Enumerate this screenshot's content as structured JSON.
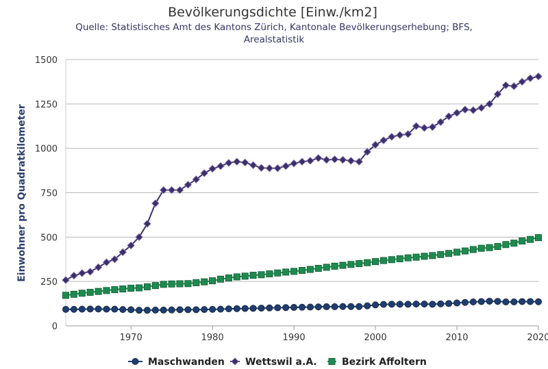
{
  "chart_data": {
    "type": "line",
    "title": "Bevölkerungsdichte [Einw./km2]",
    "subtitle_lines": [
      "Quelle: Statistisches Amt des Kantons Zürich, Kantonale Bevölkerungserhebung; BFS,",
      "Arealstatistik"
    ],
    "ylabel": "Einwohner pro Quadratkilometer",
    "xlabel": "",
    "xlim": [
      1962,
      2020
    ],
    "ylim": [
      0,
      1500
    ],
    "xticks": [
      1970,
      1980,
      1990,
      2000,
      2010,
      2020
    ],
    "yticks": [
      0,
      250,
      500,
      750,
      1000,
      1250,
      1500
    ],
    "grid": true,
    "legend_position": "bottom-center",
    "series": [
      {
        "name": "Maschwanden",
        "color": "#1f3d6e",
        "marker": "circle",
        "x": [
          1962,
          1963,
          1964,
          1965,
          1966,
          1967,
          1968,
          1969,
          1970,
          1971,
          1972,
          1973,
          1974,
          1975,
          1976,
          1977,
          1978,
          1979,
          1980,
          1981,
          1982,
          1983,
          1984,
          1985,
          1986,
          1987,
          1988,
          1989,
          1990,
          1991,
          1992,
          1993,
          1994,
          1995,
          1996,
          1997,
          1998,
          1999,
          2000,
          2001,
          2002,
          2003,
          2004,
          2005,
          2006,
          2007,
          2008,
          2009,
          2010,
          2011,
          2012,
          2013,
          2014,
          2015,
          2016,
          2017,
          2018,
          2019,
          2020
        ],
        "values": [
          93,
          93,
          94,
          95,
          95,
          94,
          94,
          92,
          91,
          88,
          88,
          89,
          89,
          90,
          91,
          91,
          91,
          92,
          93,
          94,
          96,
          97,
          98,
          99,
          100,
          101,
          102,
          103,
          104,
          105,
          106,
          107,
          108,
          108,
          109,
          109,
          109,
          113,
          118,
          121,
          122,
          122,
          122,
          123,
          123,
          122,
          124,
          126,
          129,
          132,
          135,
          137,
          139,
          138,
          135,
          135,
          137,
          137,
          136
        ]
      },
      {
        "name": "Wettswil a.A.",
        "color": "#3d2f6b",
        "marker": "diamond",
        "x": [
          1962,
          1963,
          1964,
          1965,
          1966,
          1967,
          1968,
          1969,
          1970,
          1971,
          1972,
          1973,
          1974,
          1975,
          1976,
          1977,
          1978,
          1979,
          1980,
          1981,
          1982,
          1983,
          1984,
          1985,
          1986,
          1987,
          1988,
          1989,
          1990,
          1991,
          1992,
          1993,
          1994,
          1995,
          1996,
          1997,
          1998,
          1999,
          2000,
          2001,
          2002,
          2003,
          2004,
          2005,
          2006,
          2007,
          2008,
          2009,
          2010,
          2011,
          2012,
          2013,
          2014,
          2015,
          2016,
          2017,
          2018,
          2019,
          2020
        ],
        "values": [
          258,
          283,
          297,
          305,
          330,
          358,
          375,
          415,
          453,
          500,
          575,
          690,
          765,
          765,
          765,
          795,
          825,
          860,
          885,
          900,
          918,
          925,
          920,
          905,
          890,
          888,
          888,
          900,
          915,
          925,
          930,
          945,
          935,
          938,
          935,
          930,
          925,
          980,
          1020,
          1045,
          1065,
          1075,
          1080,
          1125,
          1115,
          1120,
          1148,
          1180,
          1200,
          1218,
          1215,
          1228,
          1250,
          1305,
          1355,
          1350,
          1375,
          1395,
          1405
        ]
      },
      {
        "name": "Bezirk Affoltern",
        "color": "#1f8a50",
        "marker": "square",
        "x": [
          1962,
          1963,
          1964,
          1965,
          1966,
          1967,
          1968,
          1969,
          1970,
          1971,
          1972,
          1973,
          1974,
          1975,
          1976,
          1977,
          1978,
          1979,
          1980,
          1981,
          1982,
          1983,
          1984,
          1985,
          1986,
          1987,
          1988,
          1989,
          1990,
          1991,
          1992,
          1993,
          1994,
          1995,
          1996,
          1997,
          1998,
          1999,
          2000,
          2001,
          2002,
          2003,
          2004,
          2005,
          2006,
          2007,
          2008,
          2009,
          2010,
          2011,
          2012,
          2013,
          2014,
          2015,
          2016,
          2017,
          2018,
          2019,
          2020
        ],
        "values": [
          172,
          178,
          184,
          189,
          194,
          199,
          204,
          208,
          212,
          214,
          220,
          227,
          234,
          236,
          237,
          238,
          243,
          248,
          254,
          263,
          270,
          276,
          280,
          285,
          288,
          293,
          298,
          303,
          307,
          312,
          318,
          324,
          330,
          336,
          341,
          346,
          351,
          356,
          362,
          368,
          373,
          378,
          383,
          387,
          392,
          396,
          402,
          408,
          415,
          422,
          430,
          437,
          441,
          447,
          458,
          466,
          478,
          487,
          497
        ]
      }
    ]
  }
}
